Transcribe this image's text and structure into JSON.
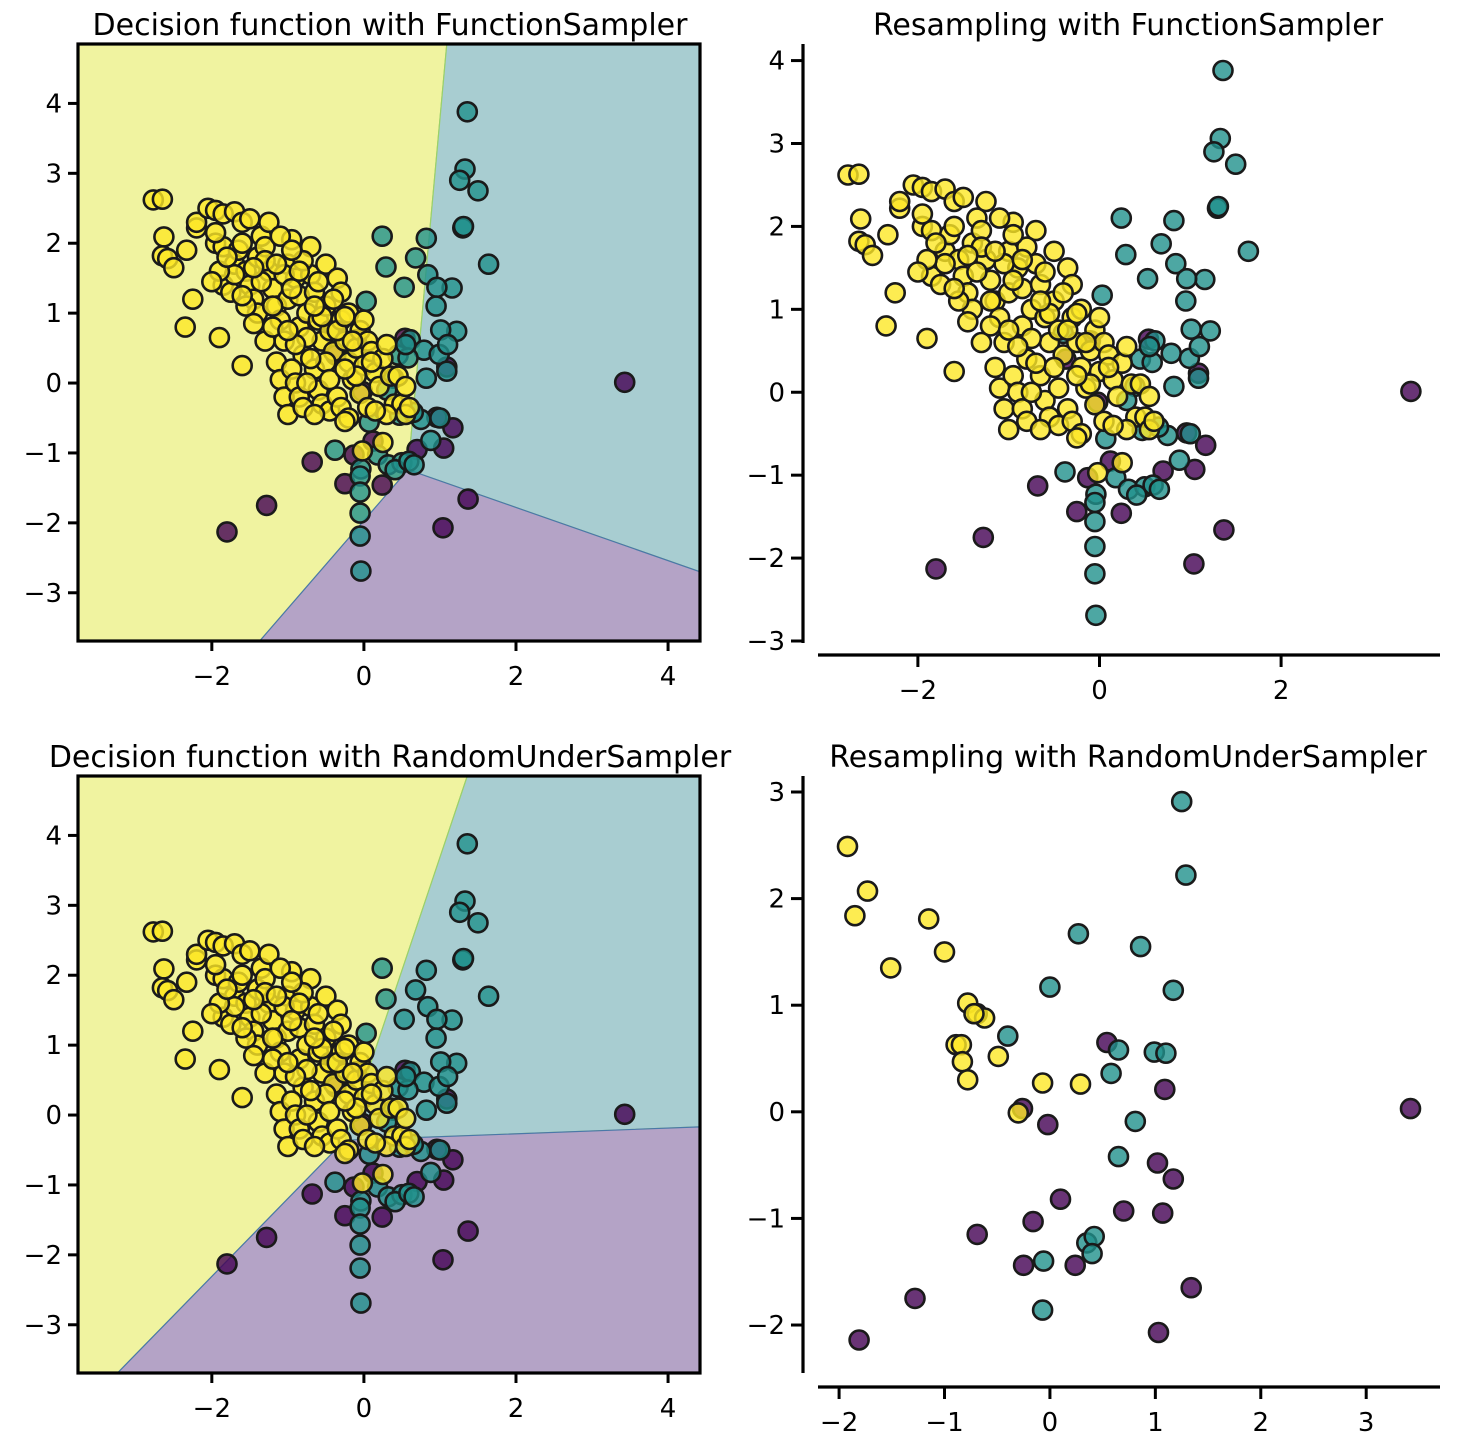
{
  "figure": {
    "colors": {
      "class_0": "#440154",
      "class_1": "#21918c",
      "class_2": "#fde725",
      "region_0": "#b4a3c6",
      "region_1": "#a8cdd1",
      "region_2": "#f0f3a0",
      "edge": "#1a1a1a"
    }
  },
  "chart_data": [
    {
      "id": "decision-function-sampler",
      "type": "scatter",
      "title": "Decision function with FunctionSampler",
      "xlabel": "",
      "ylabel": "",
      "xlim": [
        -3.76,
        4.42
      ],
      "ylim": [
        -3.69,
        4.85
      ],
      "xticks": [
        -2,
        0,
        2,
        4
      ],
      "xtick_labels": [
        "−2",
        "0",
        "2",
        "4"
      ],
      "yticks": [
        -3,
        -2,
        -1,
        0,
        1,
        2,
        3,
        4
      ],
      "ytick_labels": [
        "−3",
        "−2",
        "−1",
        "0",
        "1",
        "2",
        "3",
        "4"
      ],
      "style": "boxed",
      "decision_regions": [
        {
          "class": 2,
          "polygon": [
            [
              -3.76,
              4.85
            ],
            [
              1.09,
              4.85
            ],
            [
              0.58,
              -1.24
            ],
            [
              -1.37,
              -3.69
            ],
            [
              -3.76,
              -3.69
            ]
          ]
        },
        {
          "class": 1,
          "polygon": [
            [
              1.09,
              4.85
            ],
            [
              4.42,
              4.85
            ],
            [
              4.42,
              -2.7
            ],
            [
              0.58,
              -1.24
            ]
          ]
        },
        {
          "class": 0,
          "polygon": [
            [
              0.58,
              -1.24
            ],
            [
              4.42,
              -2.7
            ],
            [
              4.42,
              -3.69
            ],
            [
              -1.37,
              -3.69
            ]
          ]
        }
      ],
      "points_source": "full"
    },
    {
      "id": "resampling-function-sampler",
      "type": "scatter",
      "title": "Resampling with FunctionSampler",
      "xlabel": "",
      "ylabel": "",
      "xlim": [
        -3.1,
        3.75
      ],
      "ylim": [
        -3.0,
        4.2
      ],
      "xticks": [
        -2,
        0,
        2
      ],
      "xtick_labels": [
        "−2",
        "0",
        "2"
      ],
      "yticks": [
        -3,
        -2,
        -1,
        0,
        1,
        2,
        3,
        4
      ],
      "ytick_labels": [
        "−3",
        "−2",
        "−1",
        "0",
        "1",
        "2",
        "3",
        "4"
      ],
      "style": "despined",
      "points_source": "full"
    },
    {
      "id": "decision-random-under-sampler",
      "type": "scatter",
      "title": "Decision function with RandomUnderSampler",
      "xlabel": "",
      "ylabel": "",
      "xlim": [
        -3.76,
        4.42
      ],
      "ylim": [
        -3.69,
        4.85
      ],
      "xticks": [
        -2,
        0,
        2,
        4
      ],
      "xtick_labels": [
        "−2",
        "0",
        "2",
        "4"
      ],
      "yticks": [
        -3,
        -2,
        -1,
        0,
        1,
        2,
        3,
        4
      ],
      "ytick_labels": [
        "−3",
        "−2",
        "−1",
        "0",
        "1",
        "2",
        "3",
        "4"
      ],
      "style": "boxed",
      "decision_regions": [
        {
          "class": 2,
          "polygon": [
            [
              -3.76,
              4.85
            ],
            [
              1.36,
              4.85
            ],
            [
              -0.25,
              -0.36
            ],
            [
              -3.24,
              -3.69
            ],
            [
              -3.76,
              -3.69
            ]
          ]
        },
        {
          "class": 1,
          "polygon": [
            [
              1.36,
              4.85
            ],
            [
              4.42,
              4.85
            ],
            [
              4.42,
              -0.17
            ],
            [
              -0.25,
              -0.36
            ]
          ]
        },
        {
          "class": 0,
          "polygon": [
            [
              -0.25,
              -0.36
            ],
            [
              4.42,
              -0.17
            ],
            [
              4.42,
              -3.69
            ],
            [
              -3.24,
              -3.69
            ]
          ]
        }
      ],
      "points_source": "full"
    },
    {
      "id": "resampling-random-under-sampler",
      "type": "scatter",
      "title": "Resampling with RandomUnderSampler",
      "xlabel": "",
      "ylabel": "",
      "xlim": [
        -2.2,
        3.7
      ],
      "ylim": [
        -2.45,
        3.15
      ],
      "xticks": [
        -2,
        -1,
        0,
        1,
        2,
        3
      ],
      "xtick_labels": [
        "−2",
        "−1",
        "0",
        "1",
        "2",
        "3"
      ],
      "yticks": [
        -2,
        -1,
        0,
        1,
        2,
        3
      ],
      "ytick_labels": [
        "−2",
        "−1",
        "0",
        "1",
        "2",
        "3"
      ],
      "style": "despined",
      "points_source": "undersampled"
    }
  ],
  "datasets": {
    "full": {
      "class_0": [
        [
          3.43,
          0.01
        ],
        [
          -1.8,
          -2.13
        ],
        [
          -1.28,
          -1.75
        ],
        [
          -0.68,
          -1.13
        ],
        [
          -0.25,
          -1.44
        ],
        [
          -0.13,
          -1.03
        ],
        [
          0.12,
          -0.83
        ],
        [
          1.05,
          -0.93
        ],
        [
          1.17,
          -0.64
        ],
        [
          1.37,
          -1.66
        ],
        [
          1.04,
          -2.07
        ],
        [
          0.24,
          -1.46
        ],
        [
          0.96,
          -0.49
        ],
        [
          1.09,
          0.23
        ],
        [
          0.54,
          0.64
        ],
        [
          -0.37,
          0.4
        ],
        [
          -0.1,
          0.62
        ],
        [
          -0.02,
          -0.12
        ],
        [
          0.7,
          -0.95
        ]
      ],
      "class_1": [
        [
          1.36,
          3.88
        ],
        [
          1.33,
          3.06
        ],
        [
          1.26,
          2.9
        ],
        [
          1.5,
          2.75
        ],
        [
          1.3,
          2.22
        ],
        [
          1.31,
          2.24
        ],
        [
          0.24,
          2.1
        ],
        [
          0.82,
          2.07
        ],
        [
          0.68,
          1.79
        ],
        [
          0.29,
          1.66
        ],
        [
          1.64,
          1.7
        ],
        [
          0.84,
          1.55
        ],
        [
          1.16,
          1.36
        ],
        [
          0.53,
          1.37
        ],
        [
          0.96,
          1.37
        ],
        [
          0.03,
          1.17
        ],
        [
          0.95,
          1.1
        ],
        [
          1.22,
          0.74
        ],
        [
          1.01,
          0.76
        ],
        [
          0.61,
          0.62
        ],
        [
          0.45,
          0.4
        ],
        [
          0.79,
          0.47
        ],
        [
          0.99,
          0.41
        ],
        [
          1.09,
          0.17
        ],
        [
          0.82,
          0.07
        ],
        [
          0.47,
          -0.46
        ],
        [
          0.75,
          -0.52
        ],
        [
          1.0,
          -0.5
        ],
        [
          0.07,
          -0.56
        ],
        [
          0.88,
          -0.82
        ],
        [
          0.18,
          -1.03
        ],
        [
          -0.04,
          -1.23
        ],
        [
          -0.05,
          -1.33
        ],
        [
          -0.05,
          -1.56
        ],
        [
          -0.05,
          -1.86
        ],
        [
          -0.05,
          -2.19
        ],
        [
          -0.04,
          -2.69
        ],
        [
          -0.38,
          -0.96
        ],
        [
          0.32,
          -1.17
        ],
        [
          0.5,
          -1.14
        ],
        [
          0.41,
          -1.24
        ],
        [
          0.59,
          -1.12
        ],
        [
          0.66,
          -1.17
        ],
        [
          0.58,
          0.36
        ],
        [
          0.65,
          -0.42
        ],
        [
          -0.4,
          0.71
        ],
        [
          0.39,
          0.07
        ],
        [
          0.3,
          -0.1
        ],
        [
          0.55,
          0.55
        ],
        [
          1.1,
          0.55
        ]
      ],
      "class_2": [
        [
          -2.77,
          2.62
        ],
        [
          -2.65,
          2.63
        ],
        [
          -2.63,
          2.09
        ],
        [
          -2.65,
          1.82
        ],
        [
          -2.58,
          1.78
        ],
        [
          -2.5,
          1.65
        ],
        [
          -2.33,
          1.9
        ],
        [
          -2.2,
          2.22
        ],
        [
          -2.2,
          2.3
        ],
        [
          -2.05,
          2.5
        ],
        [
          -1.95,
          2.47
        ],
        [
          -1.85,
          2.42
        ],
        [
          -1.7,
          2.45
        ],
        [
          -1.6,
          2.3
        ],
        [
          -1.5,
          2.35
        ],
        [
          -1.95,
          2.0
        ],
        [
          -1.85,
          1.95
        ],
        [
          -2.25,
          1.2
        ],
        [
          -2.35,
          0.8
        ],
        [
          -1.9,
          0.65
        ],
        [
          -1.6,
          0.25
        ],
        [
          -1.85,
          1.4
        ],
        [
          -1.75,
          1.3
        ],
        [
          -1.7,
          1.7
        ],
        [
          -1.65,
          1.9
        ],
        [
          -1.6,
          2.0
        ],
        [
          -1.55,
          1.6
        ],
        [
          -1.5,
          1.4
        ],
        [
          -1.45,
          1.2
        ],
        [
          -1.4,
          1.0
        ],
        [
          -1.4,
          1.8
        ],
        [
          -1.35,
          2.1
        ],
        [
          -1.3,
          1.95
        ],
        [
          -1.25,
          1.6
        ],
        [
          -1.2,
          1.35
        ],
        [
          -1.15,
          1.1
        ],
        [
          -1.1,
          0.9
        ],
        [
          -1.05,
          0.6
        ],
        [
          -1.0,
          1.2
        ],
        [
          -1.0,
          1.7
        ],
        [
          -0.95,
          2.05
        ],
        [
          -0.9,
          1.5
        ],
        [
          -0.85,
          1.25
        ],
        [
          -0.85,
          0.8
        ],
        [
          -0.8,
          0.4
        ],
        [
          -0.75,
          1.0
        ],
        [
          -0.7,
          1.55
        ],
        [
          -0.7,
          1.95
        ],
        [
          -0.65,
          1.3
        ],
        [
          -0.6,
          0.9
        ],
        [
          -0.55,
          0.6
        ],
        [
          -0.5,
          1.7
        ],
        [
          -0.5,
          1.1
        ],
        [
          -0.45,
          0.75
        ],
        [
          -0.4,
          0.45
        ],
        [
          -0.35,
          1.5
        ],
        [
          -0.3,
          1.3
        ],
        [
          -0.3,
          0.9
        ],
        [
          -0.25,
          0.6
        ],
        [
          -0.2,
          0.3
        ],
        [
          -0.15,
          0.05
        ],
        [
          -0.1,
          0.5
        ],
        [
          -0.05,
          0.75
        ],
        [
          0.0,
          0.25
        ],
        [
          0.05,
          0.6
        ],
        [
          0.1,
          0.45
        ],
        [
          0.15,
          0.15
        ],
        [
          0.2,
          -0.05
        ],
        [
          0.25,
          0.35
        ],
        [
          0.3,
          0.55
        ],
        [
          0.35,
          0.1
        ],
        [
          0.4,
          -0.3
        ],
        [
          0.5,
          -0.3
        ],
        [
          0.55,
          -0.45
        ],
        [
          0.6,
          -0.35
        ],
        [
          0.3,
          -0.45
        ],
        [
          -1.3,
          0.6
        ],
        [
          -1.2,
          0.8
        ],
        [
          -1.15,
          0.3
        ],
        [
          -1.1,
          0.05
        ],
        [
          -1.05,
          -0.2
        ],
        [
          -1.0,
          -0.45
        ],
        [
          -0.95,
          0.2
        ],
        [
          -0.9,
          0.0
        ],
        [
          -0.85,
          -0.2
        ],
        [
          -0.8,
          -0.35
        ],
        [
          -0.65,
          0.2
        ],
        [
          -0.6,
          -0.1
        ],
        [
          -0.55,
          -0.3
        ],
        [
          -0.45,
          -0.4
        ],
        [
          -0.35,
          -0.2
        ],
        [
          -0.3,
          -0.35
        ],
        [
          -0.2,
          -0.5
        ],
        [
          -0.05,
          -0.15
        ],
        [
          0.05,
          -0.35
        ],
        [
          0.15,
          -0.4
        ],
        [
          -0.25,
          -0.55
        ],
        [
          -1.05,
          1.55
        ],
        [
          -0.95,
          1.35
        ],
        [
          -0.8,
          1.75
        ],
        [
          -0.6,
          1.45
        ],
        [
          -0.4,
          1.2
        ],
        [
          -0.2,
          1.0
        ],
        [
          0.0,
          0.9
        ],
        [
          -1.25,
          2.3
        ],
        [
          -1.1,
          2.1
        ],
        [
          -0.95,
          1.9
        ],
        [
          -1.55,
          1.1
        ],
        [
          -1.35,
          1.45
        ],
        [
          -1.7,
          1.55
        ],
        [
          -1.9,
          1.6
        ],
        [
          -2.0,
          1.45
        ],
        [
          -1.45,
          0.85
        ],
        [
          -1.6,
          1.25
        ],
        [
          -0.75,
          0.65
        ],
        [
          -0.5,
          0.3
        ],
        [
          -0.45,
          0.05
        ],
        [
          -0.7,
          0.35
        ],
        [
          -0.9,
          0.55
        ],
        [
          -1.0,
          0.75
        ],
        [
          -1.2,
          1.1
        ],
        [
          -0.55,
          0.95
        ],
        [
          -0.35,
          0.75
        ],
        [
          -0.15,
          0.6
        ],
        [
          0.1,
          0.3
        ],
        [
          -0.1,
          0.1
        ],
        [
          -0.25,
          0.2
        ],
        [
          -0.65,
          -0.45
        ],
        [
          -0.75,
          0.0
        ],
        [
          -1.3,
          1.75
        ],
        [
          -1.45,
          1.65
        ],
        [
          -1.8,
          1.8
        ],
        [
          -1.95,
          2.15
        ],
        [
          -1.15,
          1.7
        ],
        [
          -0.85,
          1.6
        ],
        [
          -0.65,
          1.1
        ],
        [
          -0.25,
          0.95
        ],
        [
          0.45,
          0.1
        ],
        [
          0.55,
          -0.05
        ],
        [
          -0.02,
          -0.97
        ],
        [
          0.25,
          -0.85
        ]
      ]
    },
    "undersampled": {
      "class_0": [
        [
          0.54,
          0.65
        ],
        [
          -0.26,
          0.03
        ],
        [
          -0.02,
          -0.12
        ],
        [
          1.09,
          0.21
        ],
        [
          1.02,
          -0.48
        ],
        [
          1.17,
          -0.63
        ],
        [
          0.1,
          -0.82
        ],
        [
          -0.16,
          -1.03
        ],
        [
          0.7,
          -0.93
        ],
        [
          1.07,
          -0.95
        ],
        [
          -0.69,
          -1.15
        ],
        [
          -0.25,
          -1.44
        ],
        [
          0.24,
          -1.44
        ],
        [
          1.03,
          -2.07
        ],
        [
          1.34,
          -1.65
        ],
        [
          -1.28,
          -1.75
        ],
        [
          -1.81,
          -2.14
        ],
        [
          3.42,
          0.03
        ]
      ],
      "class_1": [
        [
          0.27,
          1.67
        ],
        [
          -0.4,
          0.71
        ],
        [
          0.0,
          1.17
        ],
        [
          0.86,
          1.55
        ],
        [
          1.25,
          2.91
        ],
        [
          1.29,
          2.22
        ],
        [
          1.17,
          1.14
        ],
        [
          0.99,
          0.56
        ],
        [
          1.1,
          0.55
        ],
        [
          0.65,
          0.58
        ],
        [
          0.58,
          0.36
        ],
        [
          0.81,
          -0.09
        ],
        [
          0.65,
          -0.42
        ],
        [
          0.35,
          -1.23
        ],
        [
          0.42,
          -1.17
        ],
        [
          0.4,
          -1.33
        ],
        [
          -0.06,
          -1.4
        ],
        [
          -0.07,
          -1.86
        ]
      ],
      "class_2": [
        [
          -1.92,
          2.49
        ],
        [
          -1.73,
          2.07
        ],
        [
          -1.85,
          1.84
        ],
        [
          -1.15,
          1.81
        ],
        [
          -1.51,
          1.35
        ],
        [
          -1.0,
          1.5
        ],
        [
          -0.78,
          1.02
        ],
        [
          -0.69,
          0.92
        ],
        [
          -0.62,
          0.88
        ],
        [
          -0.89,
          0.63
        ],
        [
          -0.84,
          0.63
        ],
        [
          -0.83,
          0.47
        ],
        [
          -0.78,
          0.3
        ],
        [
          -0.49,
          0.52
        ],
        [
          -0.07,
          0.27
        ],
        [
          0.29,
          0.26
        ],
        [
          -0.3,
          -0.01
        ],
        [
          -0.72,
          0.92
        ]
      ]
    }
  }
}
